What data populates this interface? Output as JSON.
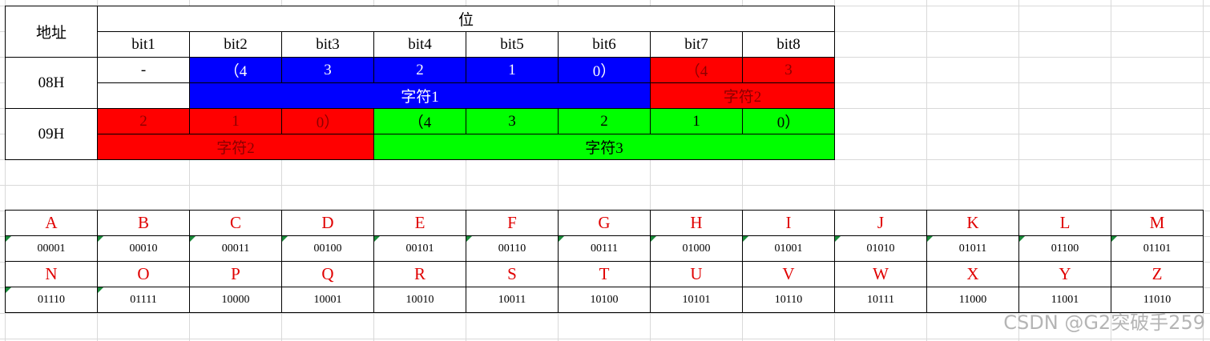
{
  "table": {
    "corner": "地址",
    "header": "位",
    "bits": [
      "bit1",
      "bit2",
      "bit3",
      "bit4",
      "bit5",
      "bit6",
      "bit7",
      "bit8"
    ],
    "rows": [
      {
        "address": "08H",
        "cells": [
          "-",
          "（4",
          "3",
          "2",
          "1",
          "0）",
          "（4",
          "3"
        ],
        "fills": [
          "#ffffff",
          "#0000ff",
          "#0000ff",
          "#0000ff",
          "#0000ff",
          "#0000ff",
          "#ff0000",
          "#ff0000"
        ],
        "groups": [
          {
            "text": "字符1",
            "fill": "#0000ff"
          },
          {
            "text": "字符2",
            "fill": "#ff0000"
          }
        ]
      },
      {
        "address": "09H",
        "cells": [
          "2",
          "1",
          "0）",
          "（4",
          "3",
          "2",
          "1",
          "0）"
        ],
        "fills": [
          "#ff0000",
          "#ff0000",
          "#ff0000",
          "#00ff00",
          "#00ff00",
          "#00ff00",
          "#00ff00",
          "#00ff00"
        ],
        "groups": [
          {
            "text": "字符2",
            "fill": "#ff0000"
          },
          {
            "text": "字符3",
            "fill": "#00ff00"
          }
        ]
      }
    ]
  },
  "codes": {
    "letters": [
      "A",
      "B",
      "C",
      "D",
      "E",
      "F",
      "G",
      "H",
      "I",
      "J",
      "K",
      "L",
      "M",
      "N",
      "O",
      "P",
      "Q",
      "R",
      "S",
      "T",
      "U",
      "V",
      "W",
      "X",
      "Y",
      "Z"
    ],
    "values": [
      "00001",
      "00010",
      "00011",
      "00100",
      "00101",
      "00110",
      "00111",
      "01000",
      "01001",
      "01010",
      "01011",
      "01100",
      "01101",
      "01110",
      "01111",
      "10000",
      "10001",
      "10010",
      "10011",
      "10100",
      "10101",
      "10110",
      "10111",
      "11000",
      "11001",
      "11010"
    ]
  },
  "watermark": "CSDN @G2突破手259"
}
